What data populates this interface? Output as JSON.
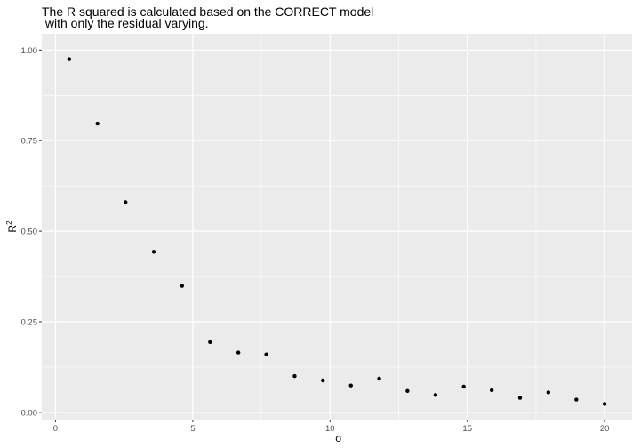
{
  "chart_data": {
    "type": "scatter",
    "title_lines": [
      "The R squared is calculated based on the CORRECT model",
      " with only the residual varying."
    ],
    "xlabel": "σ",
    "ylabel": "R",
    "ylabel_sup": "2",
    "xlim": [
      -0.5,
      21.0
    ],
    "ylim": [
      -0.02,
      1.045
    ],
    "x_ticks": [
      0,
      5,
      10,
      15,
      20
    ],
    "y_ticks": [
      0.0,
      0.25,
      0.5,
      0.75,
      1.0
    ],
    "x_tick_labels": [
      "0",
      "5",
      "10",
      "15",
      "20"
    ],
    "y_tick_labels": [
      "0.00",
      "0.25",
      "0.50",
      "0.75",
      "1.00"
    ],
    "grid": true,
    "panel_color": "#ebebeb",
    "grid_color": "#ffffff",
    "point_color": "#000000",
    "points": [
      {
        "x": 0.5,
        "y": 0.975
      },
      {
        "x": 1.53,
        "y": 0.797
      },
      {
        "x": 2.55,
        "y": 0.58
      },
      {
        "x": 3.58,
        "y": 0.443
      },
      {
        "x": 4.61,
        "y": 0.349
      },
      {
        "x": 5.63,
        "y": 0.194
      },
      {
        "x": 6.66,
        "y": 0.165
      },
      {
        "x": 7.68,
        "y": 0.16
      },
      {
        "x": 8.71,
        "y": 0.1
      },
      {
        "x": 9.74,
        "y": 0.088
      },
      {
        "x": 10.76,
        "y": 0.074
      },
      {
        "x": 11.79,
        "y": 0.093
      },
      {
        "x": 12.82,
        "y": 0.059
      },
      {
        "x": 13.84,
        "y": 0.048
      },
      {
        "x": 14.87,
        "y": 0.071
      },
      {
        "x": 15.89,
        "y": 0.061
      },
      {
        "x": 16.92,
        "y": 0.04
      },
      {
        "x": 17.95,
        "y": 0.055
      },
      {
        "x": 18.97,
        "y": 0.035
      },
      {
        "x": 20.0,
        "y": 0.023
      }
    ]
  }
}
